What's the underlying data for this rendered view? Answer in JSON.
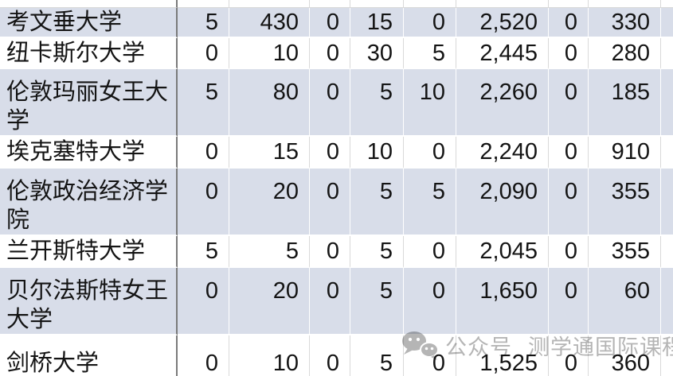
{
  "colors": {
    "band_fill": "#D8DDE9",
    "grid_line": "#D9D9D9",
    "divider_line": "#7A7A7A",
    "text_color": "#141414",
    "watermark_gray": "#B5B5B5"
  },
  "table": {
    "rows": [
      {
        "name": "考文垂大学",
        "values": [
          "5",
          "430",
          "0",
          "15",
          "0",
          "2,520",
          "0",
          "330"
        ]
      },
      {
        "name": "纽卡斯尔大学",
        "values": [
          "0",
          "10",
          "0",
          "30",
          "5",
          "2,445",
          "0",
          "280"
        ]
      },
      {
        "name": "伦敦玛丽女王大学",
        "values": [
          "5",
          "80",
          "0",
          "5",
          "10",
          "2,260",
          "0",
          "185"
        ]
      },
      {
        "name": "埃克塞特大学",
        "values": [
          "0",
          "15",
          "0",
          "10",
          "0",
          "2,240",
          "0",
          "910"
        ]
      },
      {
        "name": "伦敦政治经济学院",
        "values": [
          "0",
          "20",
          "0",
          "5",
          "5",
          "2,090",
          "0",
          "355"
        ]
      },
      {
        "name": "兰开斯特大学",
        "values": [
          "5",
          "5",
          "0",
          "5",
          "0",
          "2,045",
          "0",
          "355"
        ]
      },
      {
        "name": "贝尔法斯特女王大学",
        "values": [
          "0",
          "20",
          "0",
          "5",
          "0",
          "1,650",
          "0",
          "60"
        ]
      },
      {
        "name": "剑桥大学",
        "values": [
          "0",
          "10",
          "0",
          "5",
          "0",
          "1,525",
          "0",
          "360"
        ]
      }
    ]
  },
  "watermark": {
    "icon": "wechat-icon",
    "prefix": "公众号",
    "brand": "测学通国际课程"
  }
}
